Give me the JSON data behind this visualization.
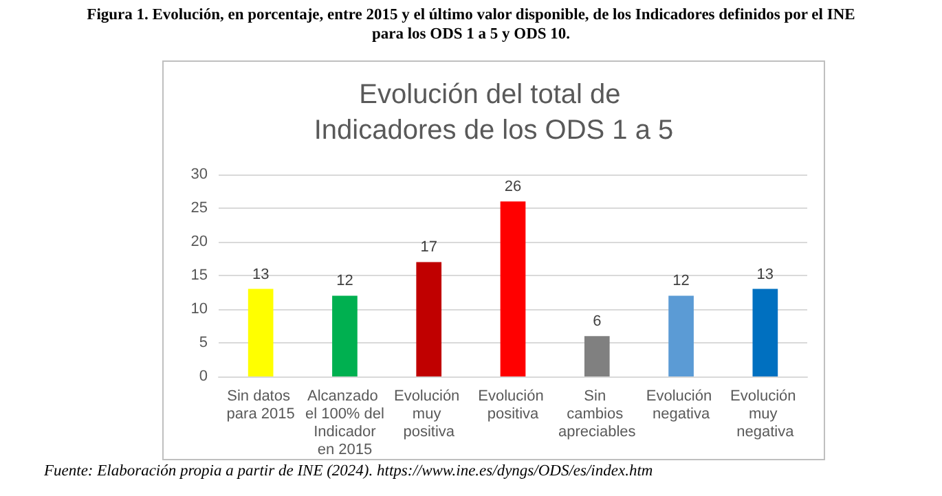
{
  "chart_data": {
    "type": "bar",
    "title": "Figura 1. Evolución, en porcentaje, entre 2015 y el último valor disponible, de los Indicadores definidos por el INE para los ODS 1 a 5 y ODS 10.",
    "subtitle": "Evolución del total de Indicadores de los ODS 1 a 5",
    "categories": [
      "Sin datos para 2015",
      "Alcanzado el 100% del Indicador en 2015",
      "Evolución muy positiva",
      "Evolución positiva",
      "Sin cambios apreciables",
      "Evolución negativa",
      "Evolución muy negativa"
    ],
    "values": [
      13,
      12,
      17,
      26,
      6,
      12,
      13
    ],
    "colors": [
      "#ffff00",
      "#00b050",
      "#c00000",
      "#ff0000",
      "#808080",
      "#5b9bd5",
      "#0070c0"
    ],
    "ylim": [
      0,
      30
    ],
    "yticks": [
      0,
      5,
      10,
      15,
      20,
      25,
      30
    ],
    "grid": "y",
    "data_labels": true,
    "annotations": [
      "Fuente: Elaboración propia a partir de INE (2024). https://www.ine.es/dyngs/ODS/es/index.htm"
    ]
  }
}
